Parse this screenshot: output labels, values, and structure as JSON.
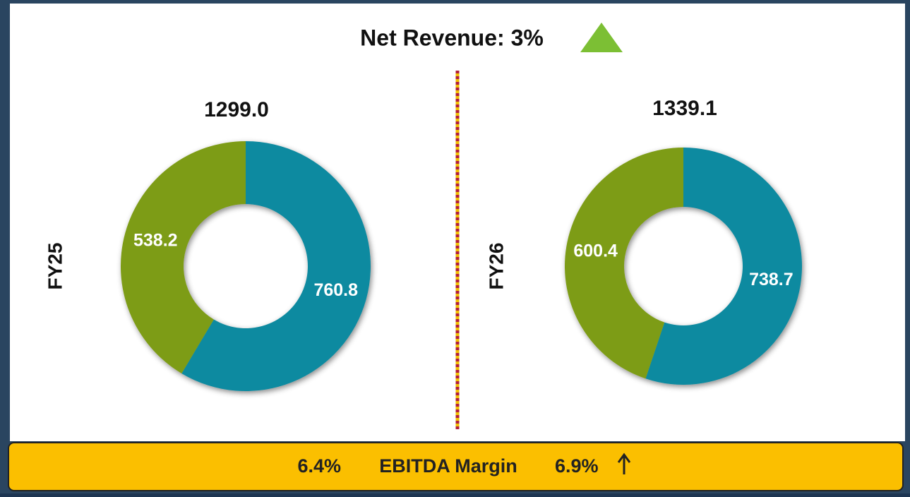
{
  "title": "Net Revenue: 3%",
  "chart_data": [
    {
      "type": "donut",
      "label": "FY25",
      "total": "1299.0",
      "values": [
        760.8,
        538.2
      ],
      "colors": [
        "#0e8aa0",
        "#7d9c12"
      ]
    },
    {
      "type": "donut",
      "label": "FY26",
      "total": "1339.1",
      "values": [
        738.7,
        600.4
      ],
      "colors": [
        "#0e8aa0",
        "#7d9c12"
      ]
    }
  ],
  "footer": {
    "left": "6.4%",
    "middle": "EBITDA Margin",
    "right": "6.9%"
  }
}
